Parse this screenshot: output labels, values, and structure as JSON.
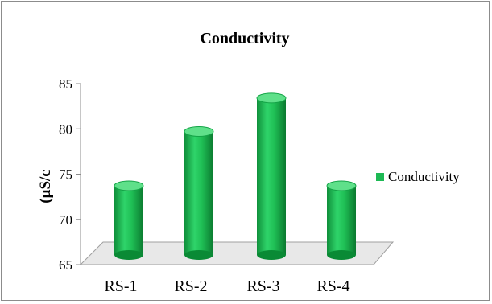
{
  "chart_data": {
    "type": "bar",
    "title": "Conductivity",
    "ylabel": "(µS/c",
    "xlabel": "",
    "categories": [
      "RS-1",
      "RS-2",
      "RS-3",
      "RS-4"
    ],
    "series": [
      {
        "name": "Conductivity",
        "values": [
          73,
          79,
          82.7,
          73
        ]
      }
    ],
    "ylim": [
      65,
      85
    ],
    "yticks": [
      65,
      70,
      75,
      80,
      85
    ],
    "grid": false,
    "legend": "right",
    "colors": {
      "bar": "#1db954",
      "bar_dark": "#0a8a35",
      "bar_light": "#5fe08a",
      "floor": "#e8e8e8"
    }
  }
}
